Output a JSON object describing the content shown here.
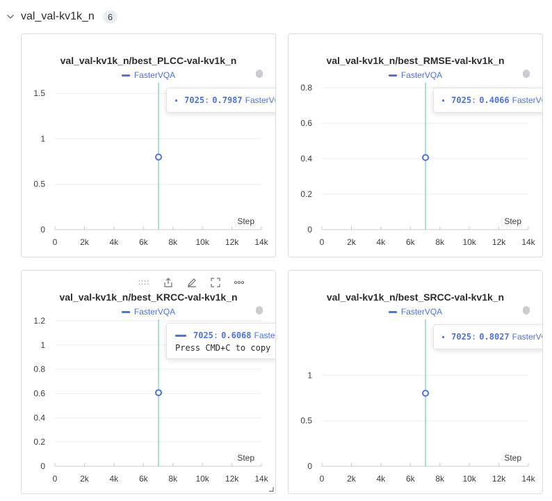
{
  "section": {
    "title": "val_val-kv1k_n",
    "count": "6"
  },
  "colors": {
    "series": "#4f73d8",
    "hover_line": "#5ab4c8",
    "grid": "#eceef1"
  },
  "panels": [
    {
      "title": "val_val-kv1k_n/best_PLCC-val-kv1k_n",
      "legend": "FasterVQA",
      "tooltip": {
        "step": "7025",
        "value": "0.7987",
        "series": "FasterVQA"
      }
    },
    {
      "title": "val_val-kv1k_n/best_RMSE-val-kv1k_n",
      "legend": "FasterVQA",
      "tooltip": {
        "step": "7025",
        "value": "0.4066",
        "series": "FasterVQA"
      }
    },
    {
      "title": "val_val-kv1k_n/best_KRCC-val-kv1k_n",
      "legend": "FasterVQA",
      "tooltip": {
        "step": "7025",
        "value": "0.6068",
        "series": "FasterVQA",
        "hint": "Press CMD+C to copy this data"
      }
    },
    {
      "title": "val_val-kv1k_n/best_SRCC-val-kv1k_n",
      "legend": "FasterVQA",
      "tooltip": {
        "step": "7025",
        "value": "0.8027",
        "series": "FasterVQA"
      }
    }
  ],
  "chart_data": [
    {
      "type": "scatter",
      "title": "val_val-kv1k_n/best_PLCC-val-kv1k_n",
      "xlabel": "Step",
      "ylabel": "",
      "xlim": [
        0,
        14000
      ],
      "ylim": [
        0,
        1.6
      ],
      "x_ticks": [
        0,
        2000,
        4000,
        6000,
        8000,
        10000,
        12000,
        14000
      ],
      "x_tick_labels": [
        "0",
        "2k",
        "4k",
        "6k",
        "8k",
        "10k",
        "12k",
        "14k"
      ],
      "y_ticks": [
        0,
        0.5,
        1,
        1.5
      ],
      "y_tick_labels": [
        "0",
        "0.5",
        "1",
        "1.5"
      ],
      "series": [
        {
          "name": "FasterVQA",
          "x": [
            7025
          ],
          "y": [
            0.7987
          ]
        }
      ]
    },
    {
      "type": "scatter",
      "title": "val_val-kv1k_n/best_RMSE-val-kv1k_n",
      "xlabel": "Step",
      "ylabel": "",
      "xlim": [
        0,
        14000
      ],
      "ylim": [
        0,
        0.82
      ],
      "x_ticks": [
        0,
        2000,
        4000,
        6000,
        8000,
        10000,
        12000,
        14000
      ],
      "x_tick_labels": [
        "0",
        "2k",
        "4k",
        "6k",
        "8k",
        "10k",
        "12k",
        "14k"
      ],
      "y_ticks": [
        0,
        0.2,
        0.4,
        0.6,
        0.8
      ],
      "y_tick_labels": [
        "0",
        "0.2",
        "0.4",
        "0.6",
        "0.8"
      ],
      "series": [
        {
          "name": "FasterVQA",
          "x": [
            7025
          ],
          "y": [
            0.4066
          ]
        }
      ]
    },
    {
      "type": "scatter",
      "title": "val_val-kv1k_n/best_KRCC-val-kv1k_n",
      "xlabel": "Step",
      "ylabel": "",
      "xlim": [
        0,
        14000
      ],
      "ylim": [
        0,
        1.2
      ],
      "x_ticks": [
        0,
        2000,
        4000,
        6000,
        8000,
        10000,
        12000,
        14000
      ],
      "x_tick_labels": [
        "0",
        "2k",
        "4k",
        "6k",
        "8k",
        "10k",
        "12k",
        "14k"
      ],
      "y_ticks": [
        0,
        0.2,
        0.4,
        0.6,
        0.8,
        1,
        1.2
      ],
      "y_tick_labels": [
        "0",
        "0.2",
        "0.4",
        "0.6",
        "0.8",
        "1",
        "1.2"
      ],
      "series": [
        {
          "name": "FasterVQA",
          "x": [
            7025
          ],
          "y": [
            0.6068
          ]
        }
      ]
    },
    {
      "type": "scatter",
      "title": "val_val-kv1k_n/best_SRCC-val-kv1k_n",
      "xlabel": "Step",
      "ylabel": "",
      "xlim": [
        0,
        14000
      ],
      "ylim": [
        0,
        1.6
      ],
      "x_ticks": [
        0,
        2000,
        4000,
        6000,
        8000,
        10000,
        12000,
        14000
      ],
      "x_tick_labels": [
        "0",
        "2k",
        "4k",
        "6k",
        "8k",
        "10k",
        "12k",
        "14k"
      ],
      "y_ticks": [
        0,
        0.5,
        1
      ],
      "y_tick_labels": [
        "0",
        "0.5",
        "1"
      ],
      "series": [
        {
          "name": "FasterVQA",
          "x": [
            7025
          ],
          "y": [
            0.8027
          ]
        }
      ]
    }
  ]
}
